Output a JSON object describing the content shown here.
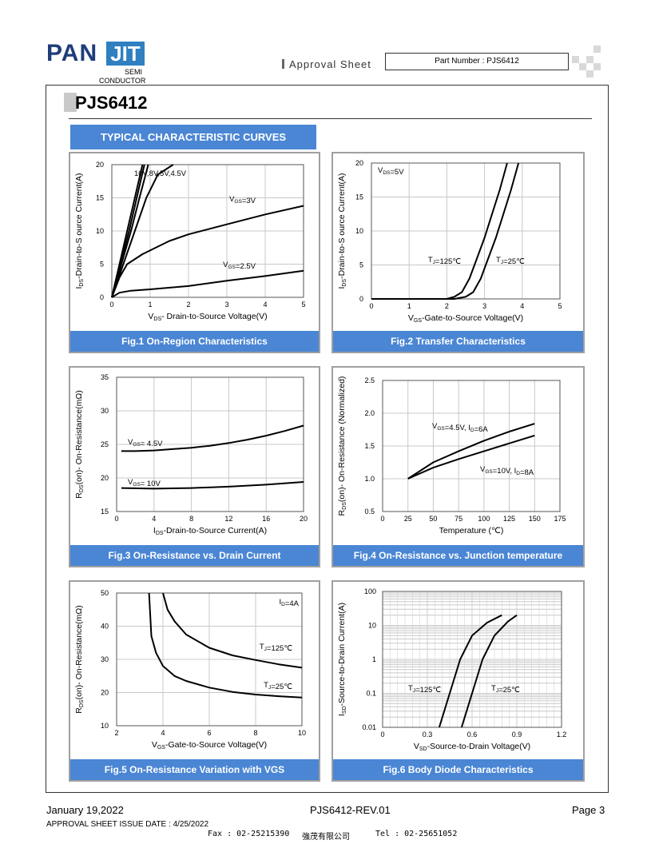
{
  "header": {
    "logo_pan": "PAN",
    "logo_jit": "JIT",
    "logo_semi": "SEMI",
    "logo_conductor": "CONDUCTOR",
    "approval": "Approval Sheet",
    "part_number": "Part Number : PJS6412"
  },
  "page_title": "PJS6412",
  "section_title": "TYPICAL CHARACTERISTIC CURVES",
  "chart_data": [
    {
      "id": "fig1",
      "type": "line",
      "title": "Fig.1 On-Region Characteristics",
      "xlabel": "VDS- Drain-to-Source Voltage(V)",
      "ylabel": "IDS-Drain-to-S ource Current(A)",
      "xlim": [
        0,
        5
      ],
      "ylim": [
        0,
        20
      ],
      "xticks": [
        0,
        1,
        2,
        3,
        4,
        5
      ],
      "yticks": [
        0,
        5,
        10,
        15,
        20
      ],
      "grid": true,
      "annotations": [
        "10V,8V,5V,4.5V",
        "VGS=3V",
        "VGS=2.5V"
      ],
      "series": [
        {
          "name": "10V",
          "points": [
            [
              0,
              0
            ],
            [
              0.2,
              5
            ],
            [
              0.4,
              10
            ],
            [
              0.6,
              15
            ],
            [
              0.8,
              20
            ]
          ]
        },
        {
          "name": "8V",
          "points": [
            [
              0,
              0
            ],
            [
              0.22,
              5
            ],
            [
              0.45,
              10
            ],
            [
              0.65,
              15
            ],
            [
              0.85,
              20
            ]
          ]
        },
        {
          "name": "5V",
          "points": [
            [
              0,
              0
            ],
            [
              0.25,
              5
            ],
            [
              0.5,
              10
            ],
            [
              0.72,
              15
            ],
            [
              0.95,
              20
            ]
          ]
        },
        {
          "name": "4.5V",
          "points": [
            [
              0,
              0
            ],
            [
              0.3,
              5
            ],
            [
              0.6,
              10
            ],
            [
              0.9,
              15
            ],
            [
              1.2,
              18.5
            ],
            [
              1.6,
              20
            ]
          ]
        },
        {
          "name": "VGS=3V",
          "points": [
            [
              0,
              0
            ],
            [
              0.2,
              3
            ],
            [
              0.4,
              5
            ],
            [
              0.8,
              6.5
            ],
            [
              1.5,
              8.5
            ],
            [
              2,
              9.5
            ],
            [
              3,
              11
            ],
            [
              4,
              12.5
            ],
            [
              5,
              13.8
            ]
          ]
        },
        {
          "name": "VGS=2.5V",
          "points": [
            [
              0,
              0
            ],
            [
              0.2,
              0.7
            ],
            [
              0.5,
              1
            ],
            [
              1,
              1.2
            ],
            [
              2,
              1.7
            ],
            [
              3,
              2.5
            ],
            [
              4,
              3.2
            ],
            [
              5,
              4
            ]
          ]
        }
      ]
    },
    {
      "id": "fig2",
      "type": "line",
      "title": "Fig.2 Transfer Characteristics",
      "xlabel": "VGS-Gate-to-Source Voltage(V)",
      "ylabel": "IDS-Drain-to-S ource Current(A)",
      "xlim": [
        0,
        5
      ],
      "ylim": [
        0,
        20
      ],
      "xticks": [
        0,
        1,
        2,
        3,
        4,
        5
      ],
      "yticks": [
        0,
        5,
        10,
        15,
        20
      ],
      "grid": true,
      "annotations": [
        "VDS=5V",
        "TJ=125℃",
        "TJ=25℃"
      ],
      "series": [
        {
          "name": "TJ=125℃",
          "points": [
            [
              0,
              0
            ],
            [
              2,
              0
            ],
            [
              2.2,
              0.3
            ],
            [
              2.4,
              1
            ],
            [
              2.6,
              3
            ],
            [
              2.8,
              6
            ],
            [
              3,
              9
            ],
            [
              3.2,
              12.5
            ],
            [
              3.4,
              16
            ],
            [
              3.6,
              20
            ]
          ]
        },
        {
          "name": "TJ=25℃",
          "points": [
            [
              0,
              0
            ],
            [
              2.2,
              0
            ],
            [
              2.5,
              0.3
            ],
            [
              2.7,
              1
            ],
            [
              2.9,
              3
            ],
            [
              3.1,
              6
            ],
            [
              3.3,
              9
            ],
            [
              3.5,
              12.5
            ],
            [
              3.7,
              16
            ],
            [
              3.9,
              20
            ]
          ]
        }
      ]
    },
    {
      "id": "fig3",
      "type": "line",
      "title": "Fig.3 On-Resistance vs. Drain Current",
      "xlabel": "IDS-Drain-to-Source Current(A)",
      "ylabel": "RDS(on)- On-Resistance(mΩ)",
      "xlim": [
        0,
        20
      ],
      "ylim": [
        15,
        35
      ],
      "xticks": [
        0,
        4,
        8,
        12,
        16,
        20
      ],
      "yticks": [
        15,
        20,
        25,
        30,
        35
      ],
      "grid": true,
      "annotations": [
        "VGS= 4.5V",
        "VGS= 10V"
      ],
      "series": [
        {
          "name": "VGS= 4.5V",
          "points": [
            [
              0.5,
              24
            ],
            [
              2,
              24
            ],
            [
              4,
              24.1
            ],
            [
              6,
              24.3
            ],
            [
              8,
              24.5
            ],
            [
              10,
              24.8
            ],
            [
              12,
              25.2
            ],
            [
              14,
              25.7
            ],
            [
              16,
              26.3
            ],
            [
              18,
              27
            ],
            [
              20,
              27.8
            ]
          ]
        },
        {
          "name": "VGS= 10V",
          "points": [
            [
              0.5,
              18.5
            ],
            [
              4,
              18.4
            ],
            [
              8,
              18.5
            ],
            [
              12,
              18.7
            ],
            [
              16,
              19
            ],
            [
              20,
              19.4
            ]
          ]
        }
      ]
    },
    {
      "id": "fig4",
      "type": "line",
      "title": "Fig.4 On-Resistance vs. Junction temperature",
      "xlabel": "Temperature (℃)",
      "ylabel": "RDS(on)- On-Resistance (Normalized)",
      "xlim": [
        0,
        175
      ],
      "ylim": [
        0.5,
        2.5
      ],
      "xticks": [
        0,
        25,
        50,
        75,
        100,
        125,
        150,
        175
      ],
      "yticks": [
        0.5,
        1.0,
        1.5,
        2.0,
        2.5
      ],
      "grid": true,
      "annotations": [
        "VGS=4.5V, ID=6A",
        "VGS=10V, ID=8A"
      ],
      "series": [
        {
          "name": "VGS=4.5V, ID=6A",
          "points": [
            [
              25,
              1
            ],
            [
              50,
              1.25
            ],
            [
              75,
              1.42
            ],
            [
              100,
              1.58
            ],
            [
              125,
              1.72
            ],
            [
              150,
              1.84
            ]
          ]
        },
        {
          "name": "VGS=10V, ID=8A",
          "points": [
            [
              25,
              1
            ],
            [
              50,
              1.17
            ],
            [
              75,
              1.3
            ],
            [
              100,
              1.42
            ],
            [
              125,
              1.54
            ],
            [
              150,
              1.66
            ]
          ]
        }
      ]
    },
    {
      "id": "fig5",
      "type": "line",
      "title": "Fig.5 On-Resistance Variation with VGS",
      "xlabel": "VGS-Gate-to-Source Voltage(V)",
      "ylabel": "RDS(on)- On-Resistance(mΩ)",
      "xlim": [
        2,
        10
      ],
      "ylim": [
        10,
        50
      ],
      "xticks": [
        2,
        4,
        6,
        8,
        10
      ],
      "yticks": [
        10,
        20,
        30,
        40,
        50
      ],
      "grid": true,
      "annotations": [
        "ID=4A",
        "TJ=125℃",
        "TJ=25℃"
      ],
      "series": [
        {
          "name": "TJ=125℃",
          "points": [
            [
              4,
              50
            ],
            [
              4.2,
              45
            ],
            [
              4.5,
              41.5
            ],
            [
              5,
              37.5
            ],
            [
              6,
              33.5
            ],
            [
              7,
              31.2
            ],
            [
              8,
              29.8
            ],
            [
              9,
              28.5
            ],
            [
              10,
              27.5
            ]
          ]
        },
        {
          "name": "TJ=25℃",
          "points": [
            [
              3.4,
              50
            ],
            [
              3.5,
              37
            ],
            [
              3.7,
              32
            ],
            [
              4,
              28
            ],
            [
              4.5,
              25
            ],
            [
              5,
              23.5
            ],
            [
              6,
              21.5
            ],
            [
              7,
              20.2
            ],
            [
              8,
              19.4
            ],
            [
              9,
              18.9
            ],
            [
              10,
              18.5
            ]
          ]
        }
      ]
    },
    {
      "id": "fig6",
      "type": "line",
      "title": "Fig.6 Body Diode Characteristics",
      "xlabel": "VSD-Source-to-Drain Voltage(V)",
      "ylabel": "ISD-Source-to-Drain Current(A)",
      "xlim": [
        0,
        1.2
      ],
      "ylim": [
        0.01,
        100
      ],
      "yscale": "log",
      "xticks": [
        0,
        0.3,
        0.6,
        0.9,
        1.2
      ],
      "ytick_labels": [
        "0.01",
        "0.1",
        "1",
        "10",
        "100"
      ],
      "grid": true,
      "annotations": [
        "TJ=125℃",
        "TJ=25℃"
      ],
      "series": [
        {
          "name": "TJ=125℃",
          "points": [
            [
              0.38,
              0.01
            ],
            [
              0.45,
              0.1
            ],
            [
              0.52,
              1
            ],
            [
              0.6,
              5
            ],
            [
              0.7,
              12
            ],
            [
              0.8,
              20
            ]
          ]
        },
        {
          "name": "TJ=25℃",
          "points": [
            [
              0.53,
              0.01
            ],
            [
              0.6,
              0.1
            ],
            [
              0.67,
              1
            ],
            [
              0.75,
              5
            ],
            [
              0.84,
              13
            ],
            [
              0.9,
              20
            ]
          ]
        }
      ]
    }
  ],
  "footer": {
    "date": "January 19,2022",
    "rev": "PJS6412-REV.01",
    "page": "Page 3",
    "issue": "APPROVAL SHEET ISSUE DATE : 4/25/2022",
    "fax": "Fax : 02-25215390",
    "company": "強茂有限公司",
    "tel": "Tel : 02-25651052"
  }
}
